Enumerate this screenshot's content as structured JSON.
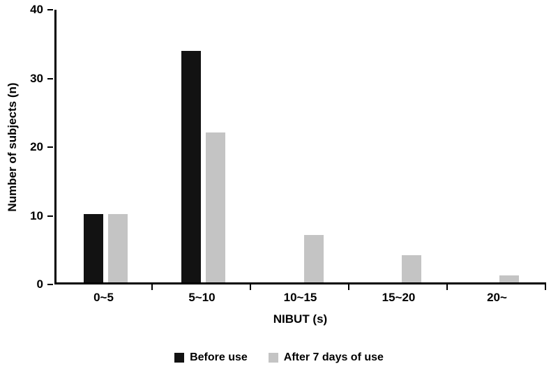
{
  "chart_data": {
    "type": "bar",
    "title": "",
    "xlabel": "NIBUT (s)",
    "ylabel": "Number of subjects (n)",
    "categories": [
      "0~5",
      "5~10",
      "10~15",
      "15~20",
      "20~"
    ],
    "series": [
      {
        "name": "Before use",
        "color": "#121212",
        "values": [
          10,
          34,
          0,
          0,
          0
        ]
      },
      {
        "name": "After 7 days of use",
        "color": "#c4c4c4",
        "values": [
          10,
          22,
          7,
          4,
          1
        ]
      }
    ],
    "ylim": [
      0,
      40
    ],
    "ytick_step": 10,
    "yticks": [
      0,
      10,
      20,
      30,
      40
    ],
    "grid": false,
    "legend_position": "bottom"
  }
}
